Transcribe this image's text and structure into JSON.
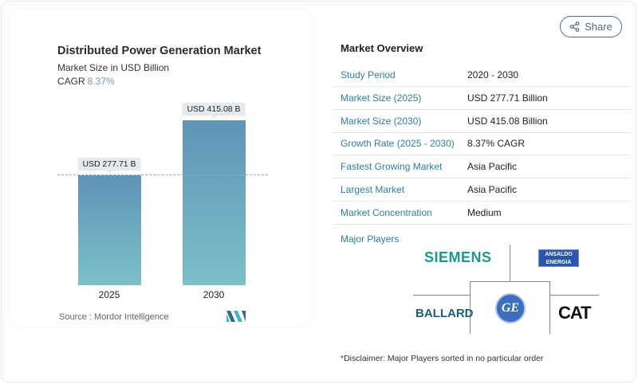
{
  "chart": {
    "title": "Distributed Power Generation Market",
    "subtitle": "Market Size in USD Billion",
    "cagr_label": "CAGR",
    "cagr_value": "8.37%",
    "source": "Source :  Mordor Intelligence"
  },
  "chart_data": {
    "type": "bar",
    "categories": [
      "2025",
      "2030"
    ],
    "values": [
      277.71,
      415.08
    ],
    "data_labels": [
      "USD 277.71 B",
      "USD 415.08 B"
    ],
    "title": "Distributed Power Generation Market",
    "ylabel": "Market Size in USD Billion",
    "colors": [
      "#5f94b8",
      "#7cc0c8"
    ]
  },
  "share_label": "Share",
  "overview": {
    "title": "Market Overview",
    "rows": [
      {
        "k": "Study Period",
        "v": "2020 - 2030"
      },
      {
        "k": "Market Size (2025)",
        "v": "USD 277.71 Billion"
      },
      {
        "k": "Market Size (2030)",
        "v": "USD 415.08 Billion"
      },
      {
        "k": "Growth Rate (2025 - 2030)",
        "v": "8.37% CAGR"
      },
      {
        "k": "Fastest Growing Market",
        "v": "Asia Pacific"
      },
      {
        "k": "Largest Market",
        "v": "Asia Pacific"
      },
      {
        "k": "Market Concentration",
        "v": "Medium"
      }
    ],
    "players_label": "Major Players",
    "players": [
      "SIEMENS",
      "ANSALDO ENERGIA",
      "BALLARD",
      "GE",
      "CAT"
    ]
  },
  "disclaimer": "*Disclaimer: Major Players sorted in no particular order"
}
